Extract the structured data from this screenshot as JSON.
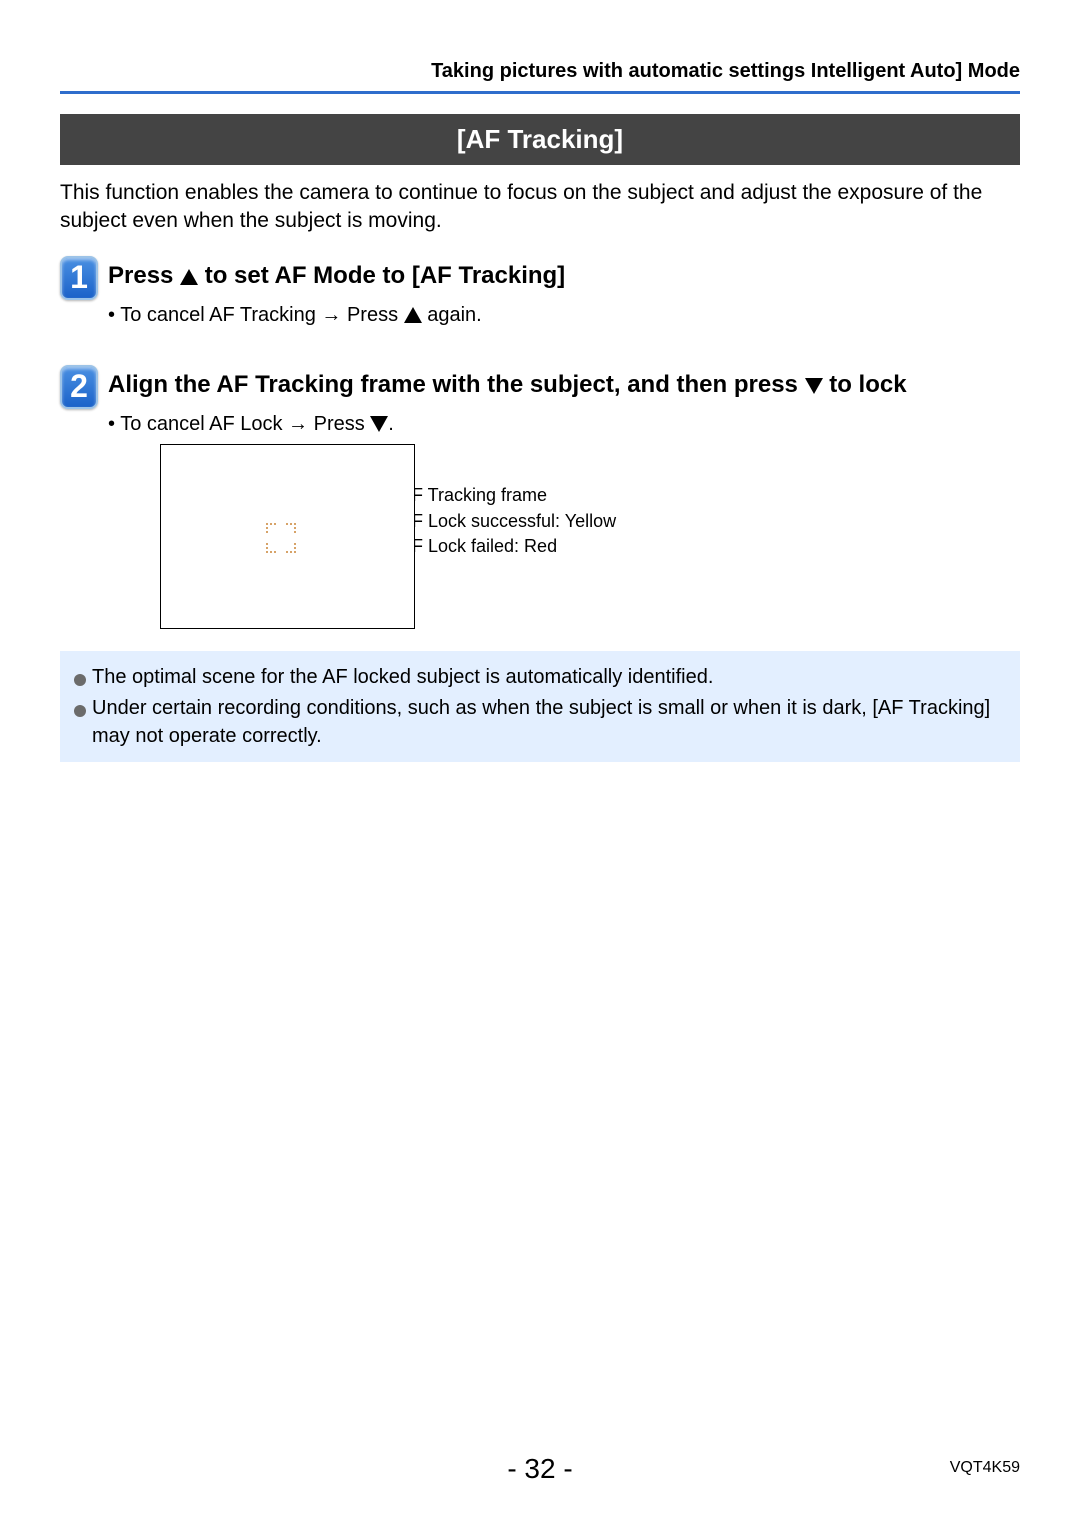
{
  "breadcrumb": "Taking pictures with automatic settings  Intelligent Auto] Mode",
  "section_title": "[AF Tracking]",
  "intro": "This function enables the camera to continue to focus on the subject and adjust the exposure of the subject even when the subject is moving.",
  "step1": {
    "num": "1",
    "title_pre": "Press ",
    "title_post": " to set AF Mode to [AF Tracking]",
    "bullet_pre": "• To cancel AF Tracking → Press ",
    "bullet_post": " again."
  },
  "step2": {
    "num": "2",
    "title_pre": "Align the AF Tracking frame with the subject, and then press ",
    "title_post": " to lock",
    "bullet_pre": "• To cancel AF Lock → Press ",
    "bullet_post": "."
  },
  "callout": {
    "line1": "AF Tracking frame",
    "line2": "AF Lock successful: Yellow",
    "line3": "AF Lock failed: Red"
  },
  "notes": {
    "n1": "The optimal scene for the AF locked subject is automatically identified.",
    "n2": "Under certain recording conditions, such as when the subject is small or when it is dark, [AF Tracking] may not operate correctly."
  },
  "page_number": "- 32 -",
  "doc_code": "VQT4K59",
  "colors": {
    "divider": "#2e6dcc",
    "section_bg": "#444444",
    "note_bg": "#e3efff",
    "step_grad_top": "#4a90e2",
    "step_grad_bot": "#1b62c9",
    "af_corner": "#d7a368"
  }
}
